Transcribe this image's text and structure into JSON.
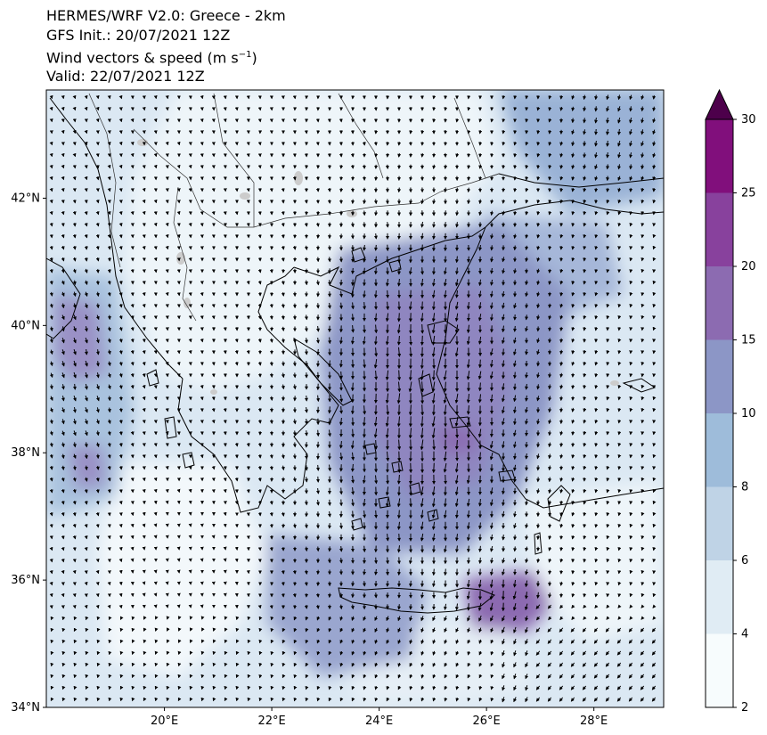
{
  "titles": {
    "line1": "HERMES/WRF V2.0: Greece - 2km",
    "line2": "GFS Init.: 20/07/2021 12Z",
    "line3_main": "Wind vectors & speed (m s",
    "line3_sup": "−1",
    "line3_end": ")",
    "line4": "Valid: 22/07/2021 12Z"
  },
  "map": {
    "lon_range": [
      17.8,
      29.3
    ],
    "lat_range": [
      34.0,
      43.7
    ],
    "lat_ticks": [
      {
        "value": 34,
        "label": "34°N"
      },
      {
        "value": 36,
        "label": "36°N"
      },
      {
        "value": 38,
        "label": "38°N"
      },
      {
        "value": 40,
        "label": "40°N"
      },
      {
        "value": 42,
        "label": "42°N"
      }
    ],
    "lon_ticks": [
      {
        "value": 20,
        "label": "20°E"
      },
      {
        "value": 22,
        "label": "22°E"
      },
      {
        "value": 24,
        "label": "24°E"
      },
      {
        "value": 26,
        "label": "26°E"
      },
      {
        "value": 28,
        "label": "28°E"
      }
    ],
    "wind_regime": "northerly (Etesian) flow, strongest over central/southern Aegean and east of Crete"
  },
  "colorbar": {
    "levels": [
      2,
      4,
      6,
      8,
      10,
      15,
      20,
      25,
      30
    ],
    "labels": [
      "2",
      "4",
      "6",
      "8",
      "10",
      "15",
      "20",
      "25",
      "30"
    ],
    "colors": [
      "#f7fcfd",
      "#e0ecf4",
      "#bfd3e6",
      "#9ebcda",
      "#8c96c6",
      "#8c6bb1",
      "#88419d",
      "#810f7c"
    ],
    "extend_color": "#4d004b",
    "extend": "max"
  },
  "colors": {
    "coastline": "#000000",
    "border": "#333333",
    "lakes": "#cccccc",
    "arrows": "#000000"
  }
}
